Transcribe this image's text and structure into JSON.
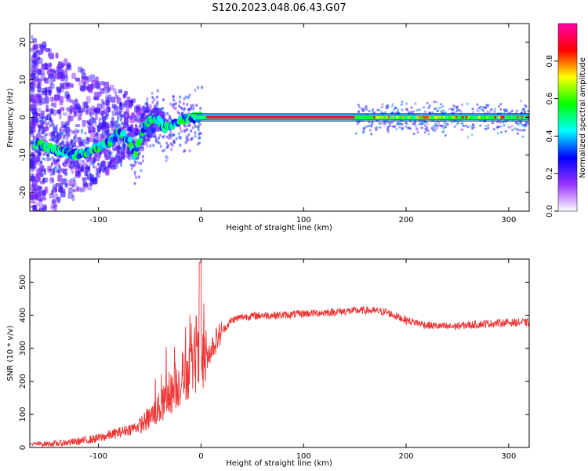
{
  "title": "S120.2023.048.06.43.G07",
  "chart_data": [
    {
      "type": "heatmap",
      "xlabel": "Height of straight line (km)",
      "ylabel": "Frequency (Hz)",
      "xlim": [
        -167,
        320
      ],
      "ylim": [
        -25,
        25
      ],
      "xticks": [
        -100,
        0,
        100,
        200,
        300
      ],
      "yticks": [
        -20,
        -10,
        0,
        10,
        20
      ],
      "ridge": {
        "x": [
          -160,
          -150,
          -140,
          -130,
          -120,
          -110,
          -100,
          -90,
          -80,
          -70,
          -65,
          -60,
          -55,
          -50,
          -45,
          -40,
          -35,
          -30,
          -25,
          -20,
          -15,
          -10,
          -5,
          0,
          320
        ],
        "y": [
          -7,
          -8,
          -9,
          -9.5,
          -10,
          -9,
          -8,
          -7,
          -4,
          -6,
          -10,
          -6,
          -2,
          -1,
          0,
          -1,
          -3,
          -2,
          -1.5,
          -1,
          -0.5,
          -0.2,
          0,
          0,
          0
        ]
      },
      "band": {
        "upper": 1,
        "lower": -1
      },
      "colorbar": {
        "label": "Normalized spectral amplitude",
        "range": [
          0,
          1
        ],
        "ticks": [
          0.0,
          0.2,
          0.4,
          0.6,
          0.8
        ],
        "tick_labels": [
          "0.0",
          "0.2",
          "0.4",
          "0.6",
          "0.8"
        ],
        "colormap": [
          "#ffffff",
          "#9933ff",
          "#0000ff",
          "#00ffff",
          "#00ff00",
          "#ffff00",
          "#ff0000",
          "#ff00aa"
        ]
      }
    },
    {
      "type": "line",
      "xlabel": "Height of straight line (km)",
      "ylabel": "SNR (10 * v/v)",
      "xlim": [
        -167,
        320
      ],
      "ylim": [
        0,
        570
      ],
      "xticks": [
        -100,
        0,
        100,
        200,
        300
      ],
      "yticks": [
        0,
        100,
        200,
        300,
        400,
        500
      ],
      "series": [
        {
          "color": "#ee3333",
          "x": [
            -167,
            -140,
            -120,
            -100,
            -80,
            -60,
            -50,
            -40,
            -30,
            -20,
            -10,
            -5,
            0,
            5,
            10,
            20,
            30,
            40,
            60,
            80,
            100,
            120,
            140,
            160,
            180,
            200,
            220,
            240,
            260,
            280,
            300,
            320
          ],
          "y": [
            10,
            12,
            18,
            28,
            45,
            65,
            90,
            120,
            160,
            200,
            240,
            260,
            260,
            270,
            300,
            350,
            385,
            395,
            400,
            400,
            405,
            408,
            412,
            415,
            410,
            385,
            370,
            365,
            370,
            375,
            378,
            378
          ]
        }
      ]
    }
  ]
}
